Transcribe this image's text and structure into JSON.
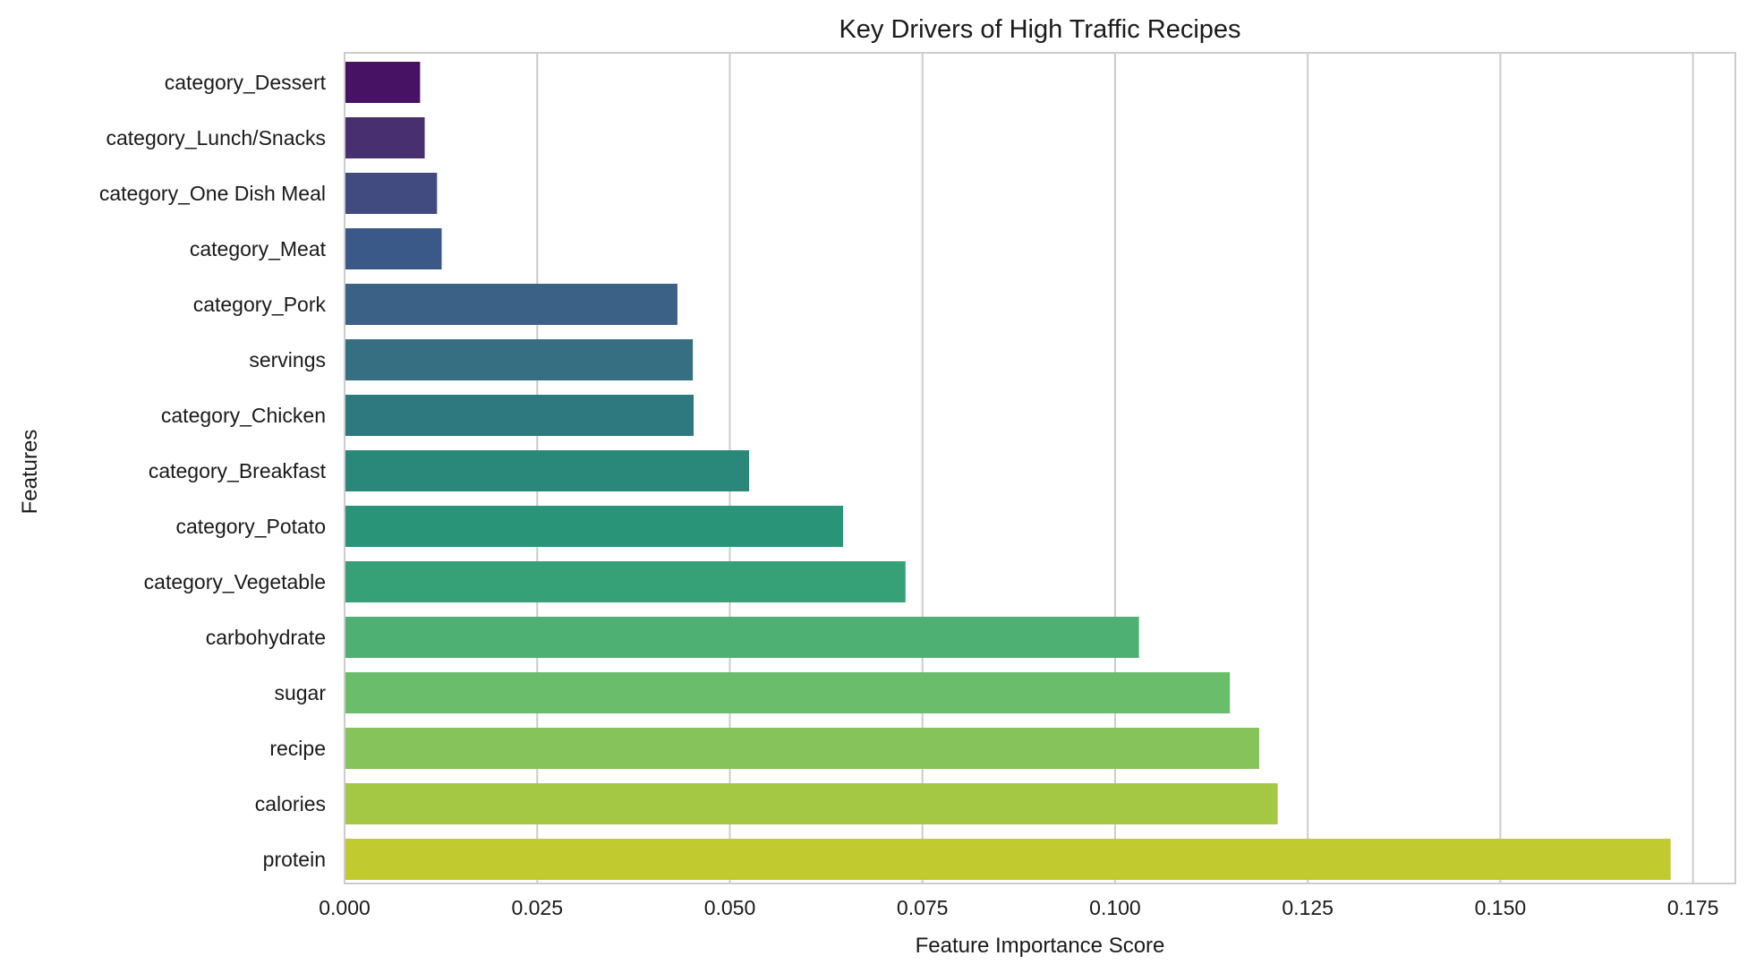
{
  "chart_data": {
    "type": "bar",
    "orientation": "horizontal",
    "title": "Key Drivers of High Traffic Recipes",
    "xlabel": "Feature Importance Score",
    "ylabel": "Features",
    "xlim": [
      0,
      0.1805
    ],
    "xticks": [
      0.0,
      0.025,
      0.05,
      0.075,
      0.1,
      0.125,
      0.15,
      0.175
    ],
    "xtick_labels": [
      "0.000",
      "0.025",
      "0.050",
      "0.075",
      "0.100",
      "0.125",
      "0.150",
      "0.175"
    ],
    "grid": "vertical",
    "colormap": "viridis",
    "categories": [
      "category_Dessert",
      "category_Lunch/Snacks",
      "category_One Dish Meal",
      "category_Meat",
      "category_Pork",
      "servings",
      "category_Chicken",
      "category_Breakfast",
      "category_Potato",
      "category_Vegetable",
      "carbohydrate",
      "sugar",
      "recipe",
      "calories",
      "protein"
    ],
    "values": [
      0.0098,
      0.0104,
      0.012,
      0.0126,
      0.0432,
      0.0452,
      0.0453,
      0.0525,
      0.0647,
      0.0728,
      0.1031,
      0.1149,
      0.1187,
      0.1211,
      0.1721
    ],
    "colors": [
      "#471164",
      "#482f6f",
      "#424b7f",
      "#3b5988",
      "#3c6186",
      "#366f82",
      "#2e787f",
      "#2a887a",
      "#2a9479",
      "#36a177",
      "#4fb074",
      "#6abe6b",
      "#86c45b",
      "#a4c843",
      "#c1cb2f"
    ]
  }
}
